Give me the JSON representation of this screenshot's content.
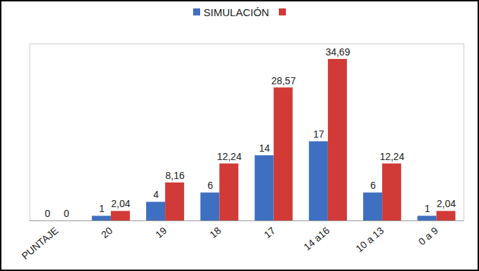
{
  "chart_data": {
    "type": "bar",
    "categories": [
      "PUNTAJE",
      "20",
      "19",
      "18",
      "17",
      "14 a16",
      "10 a 13",
      "0 a 9"
    ],
    "series": [
      {
        "name": "SIMULACIÓN",
        "color": "#3f6fc1",
        "values": [
          0,
          1,
          4,
          6,
          14,
          17,
          6,
          1
        ]
      },
      {
        "name": null,
        "color": "#d13a36",
        "values": [
          0,
          2.04,
          8.16,
          12.24,
          28.57,
          34.69,
          12.24,
          2.04
        ],
        "value_labels": [
          "0",
          "2,04",
          "8,16",
          "12,24",
          "28,57",
          "34,69",
          "12,24",
          "2,04"
        ]
      }
    ],
    "ylim": [
      0,
      38
    ],
    "data_labels": true,
    "legend": "top",
    "tick_labels": "x"
  }
}
